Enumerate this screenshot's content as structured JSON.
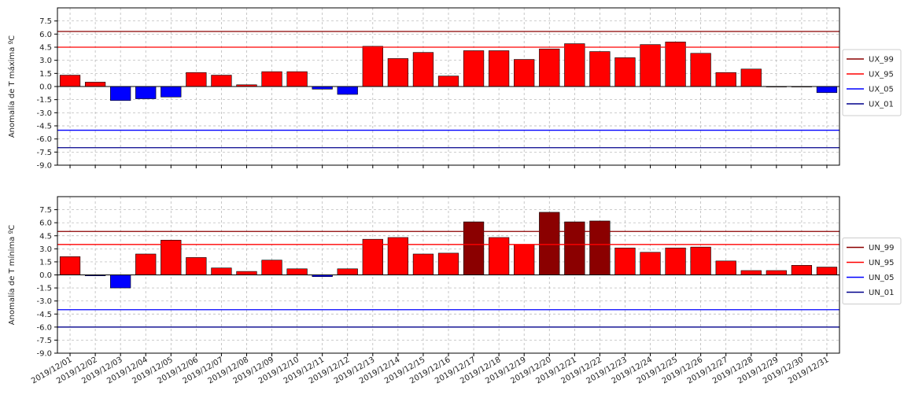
{
  "chart_data": [
    {
      "type": "bar",
      "ylabel": "Anomalía de T máxima ºC",
      "ylim": [
        -9.0,
        9.0
      ],
      "yticks": [
        "-9.0",
        "-7.5",
        "-6.0",
        "-4.5",
        "-3.0",
        "-1.5",
        "0.0",
        "1.5",
        "3.0",
        "4.5",
        "6.0",
        "7.5"
      ],
      "grid": true,
      "legend_position": "right",
      "categories": [
        "2019/12/01",
        "2019/12/02",
        "2019/12/03",
        "2019/12/04",
        "2019/12/05",
        "2019/12/06",
        "2019/12/07",
        "2019/12/08",
        "2019/12/09",
        "2019/12/10",
        "2019/12/11",
        "2019/12/12",
        "2019/12/13",
        "2019/12/14",
        "2019/12/15",
        "2019/12/16",
        "2019/12/17",
        "2019/12/18",
        "2019/12/19",
        "2019/12/20",
        "2019/12/21",
        "2019/12/22",
        "2019/12/23",
        "2019/12/24",
        "2019/12/25",
        "2019/12/26",
        "2019/12/27",
        "2019/12/28",
        "2019/12/29",
        "2019/12/30",
        "2019/12/31"
      ],
      "values": [
        1.3,
        0.5,
        -1.6,
        -1.4,
        -1.2,
        1.6,
        1.3,
        0.2,
        1.7,
        1.7,
        -0.3,
        -0.9,
        4.6,
        3.2,
        3.9,
        1.2,
        4.1,
        4.1,
        3.1,
        4.3,
        4.9,
        4.0,
        3.3,
        4.8,
        5.1,
        3.8,
        1.6,
        2.0,
        0.0,
        0.0,
        -0.7
      ],
      "thresholds": [
        {
          "name": "UX_99",
          "value": 6.3,
          "color": "#8b0000"
        },
        {
          "name": "UX_95",
          "value": 4.5,
          "color": "#ff0000"
        },
        {
          "name": "UX_05",
          "value": -5.0,
          "color": "#0000ff"
        },
        {
          "name": "UX_01",
          "value": -7.0,
          "color": "#00008b"
        }
      ],
      "bar_colors": {
        "extreme_high": "#8b0000",
        "high": "#ff0000",
        "low": "#0000ff"
      }
    },
    {
      "type": "bar",
      "ylabel": "Anomalía de T mínima ºC",
      "ylim": [
        -9.0,
        9.0
      ],
      "yticks": [
        "-9.0",
        "-7.5",
        "-6.0",
        "-4.5",
        "-3.0",
        "-1.5",
        "0.0",
        "1.5",
        "3.0",
        "4.5",
        "6.0",
        "7.5"
      ],
      "grid": true,
      "legend_position": "right",
      "categories": [
        "2019/12/01",
        "2019/12/02",
        "2019/12/03",
        "2019/12/04",
        "2019/12/05",
        "2019/12/06",
        "2019/12/07",
        "2019/12/08",
        "2019/12/09",
        "2019/12/10",
        "2019/12/11",
        "2019/12/12",
        "2019/12/13",
        "2019/12/14",
        "2019/12/15",
        "2019/12/16",
        "2019/12/17",
        "2019/12/18",
        "2019/12/19",
        "2019/12/20",
        "2019/12/21",
        "2019/12/22",
        "2019/12/23",
        "2019/12/24",
        "2019/12/25",
        "2019/12/26",
        "2019/12/27",
        "2019/12/28",
        "2019/12/29",
        "2019/12/30",
        "2019/12/31"
      ],
      "values": [
        2.1,
        -0.1,
        -1.5,
        2.4,
        4.0,
        2.0,
        0.8,
        0.4,
        1.7,
        0.7,
        -0.2,
        0.7,
        4.1,
        4.3,
        2.4,
        2.5,
        6.1,
        4.3,
        3.5,
        7.2,
        6.1,
        6.2,
        3.1,
        2.6,
        3.1,
        3.2,
        1.6,
        0.5,
        0.5,
        1.1,
        0.9
      ],
      "thresholds": [
        {
          "name": "UN_99",
          "value": 5.0,
          "color": "#8b0000"
        },
        {
          "name": "UN_95",
          "value": 3.5,
          "color": "#ff0000"
        },
        {
          "name": "UN_05",
          "value": -4.0,
          "color": "#0000ff"
        },
        {
          "name": "UN_01",
          "value": -6.0,
          "color": "#00008b"
        }
      ],
      "bar_colors": {
        "extreme_high": "#8b0000",
        "high": "#ff0000",
        "low": "#0000ff"
      }
    }
  ]
}
